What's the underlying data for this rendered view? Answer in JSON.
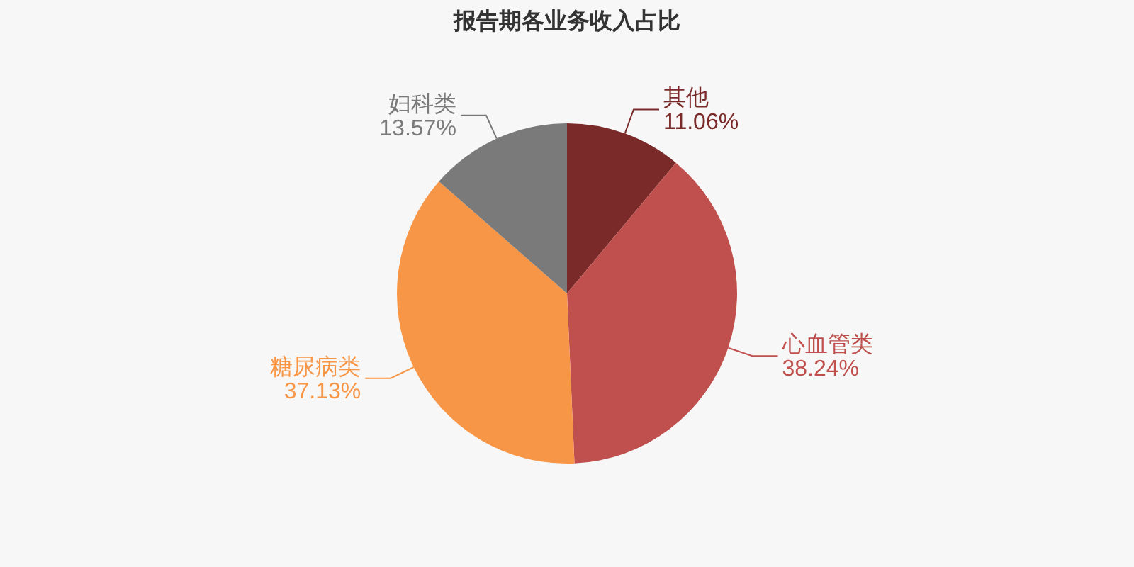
{
  "chart_data": {
    "type": "pie",
    "title": "报告期各业务收入占比",
    "categories": [
      "其他",
      "心血管类",
      "糖尿病类",
      "妇科类"
    ],
    "values": [
      11.06,
      38.24,
      37.13,
      13.57
    ],
    "colors": [
      "#7b2a2a",
      "#c0504d",
      "#f79646",
      "#7a7a7a"
    ],
    "value_labels": [
      "11.06%",
      "38.24%",
      "37.13%",
      "13.57%"
    ]
  }
}
